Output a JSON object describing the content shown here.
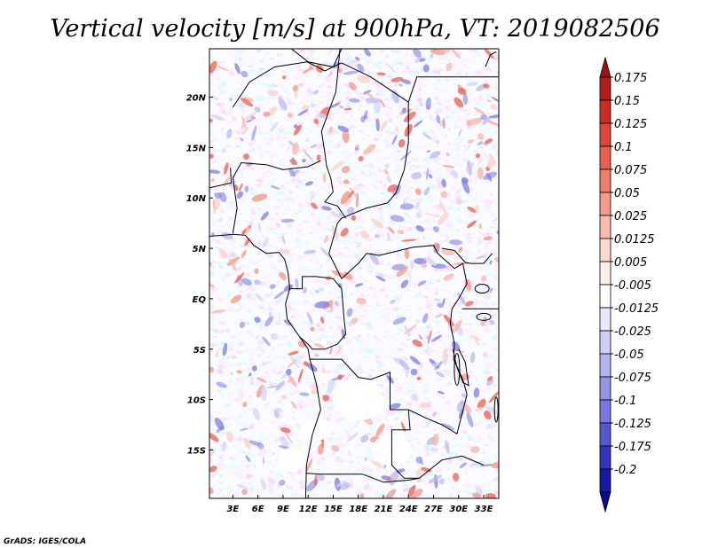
{
  "chart_data": {
    "type": "heatmap",
    "title": "Vertical velocity [m/s] at 900hPa, VT: 2019082506",
    "variable": "Vertical velocity",
    "units": "m/s",
    "level": "900hPa",
    "valid_time": "2019082506",
    "x_tick_labels": [
      "3E",
      "6E",
      "9E",
      "12E",
      "15E",
      "18E",
      "21E",
      "24E",
      "27E",
      "30E",
      "33E"
    ],
    "x_tick_values": [
      3,
      6,
      9,
      12,
      15,
      18,
      21,
      24,
      27,
      30,
      33
    ],
    "y_tick_labels": [
      "20N",
      "15N",
      "10N",
      "5N",
      "EQ",
      "5S",
      "10S",
      "15S"
    ],
    "y_tick_values": [
      20,
      15,
      10,
      5,
      0,
      -5,
      -10,
      -15
    ],
    "lon_range": [
      0.2,
      34.8
    ],
    "lat_range": [
      -19.8,
      24.8
    ],
    "colorbar_labels": [
      "0.175",
      "0.15",
      "0.125",
      "0.1",
      "0.075",
      "0.05",
      "0.025",
      "0.0125",
      "0.005",
      "-0.005",
      "-0.0125",
      "-0.025",
      "-0.05",
      "-0.075",
      "-0.1",
      "-0.125",
      "-0.175",
      "-0.2"
    ],
    "colorbar_colors": [
      "#9b1214",
      "#b51c1c",
      "#cd2b26",
      "#df4539",
      "#e8604f",
      "#ef7d6b",
      "#f39c8b",
      "#f8bcaf",
      "#fbd9d1",
      "#fdf0ec",
      "#ffffff",
      "#e9e9fb",
      "#cfcff5",
      "#b3b3ee",
      "#9595e6",
      "#7878dd",
      "#5757cf",
      "#3434bd",
      "#1818a3",
      "#0a0a85"
    ],
    "credit": "GrADS: IGES/COLA"
  }
}
